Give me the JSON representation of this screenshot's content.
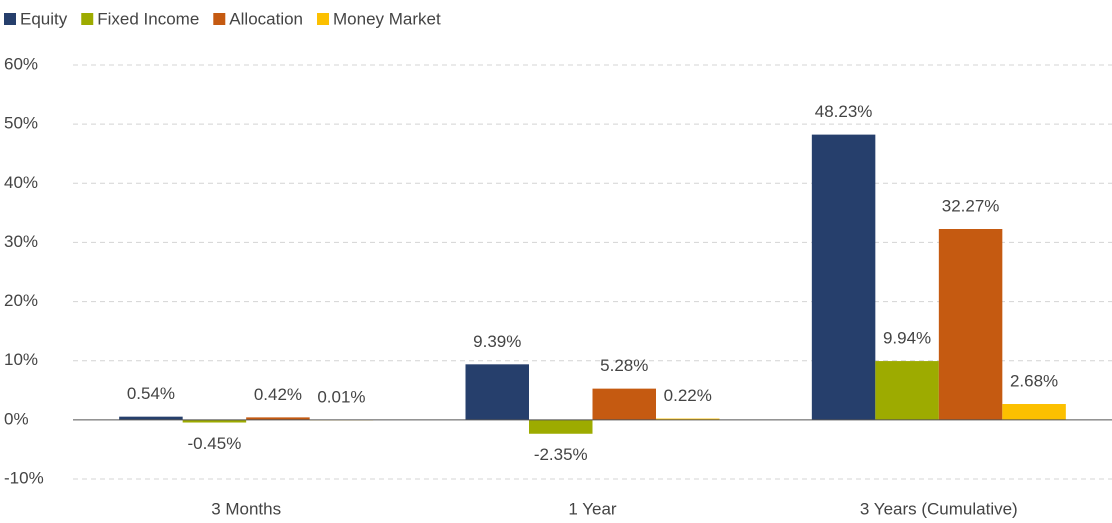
{
  "chart_data": {
    "type": "bar",
    "categories": [
      "3 Months",
      "1 Year",
      "3 Years (Cumulative)"
    ],
    "series": [
      {
        "name": "Equity",
        "color": "#263f6c",
        "values": [
          0.54,
          9.39,
          48.23
        ],
        "value_labels": [
          "0.54%",
          "9.39%",
          "48.23%"
        ]
      },
      {
        "name": "Fixed Income",
        "color": "#9dab00",
        "values": [
          -0.45,
          -2.35,
          9.94
        ],
        "value_labels": [
          "-0.45%",
          "-2.35%",
          "9.94%"
        ]
      },
      {
        "name": "Allocation",
        "color": "#c55a11",
        "values": [
          0.42,
          5.28,
          32.27
        ],
        "value_labels": [
          "0.42%",
          "5.28%",
          "32.27%"
        ]
      },
      {
        "name": "Money Market",
        "color": "#fcc000",
        "values": [
          0.01,
          0.22,
          2.68
        ],
        "value_labels": [
          "0.01%",
          "0.22%",
          "2.68%"
        ]
      }
    ],
    "ylim": [
      -10,
      60
    ],
    "yticks": [
      {
        "value": -10,
        "label": "-10%"
      },
      {
        "value": 0,
        "label": "0%"
      },
      {
        "value": 10,
        "label": "10%"
      },
      {
        "value": 20,
        "label": "20%"
      },
      {
        "value": 30,
        "label": "30%"
      },
      {
        "value": 40,
        "label": "40%"
      },
      {
        "value": 50,
        "label": "50%"
      },
      {
        "value": 60,
        "label": "60%"
      }
    ],
    "grid": true,
    "legend": "top-left"
  }
}
